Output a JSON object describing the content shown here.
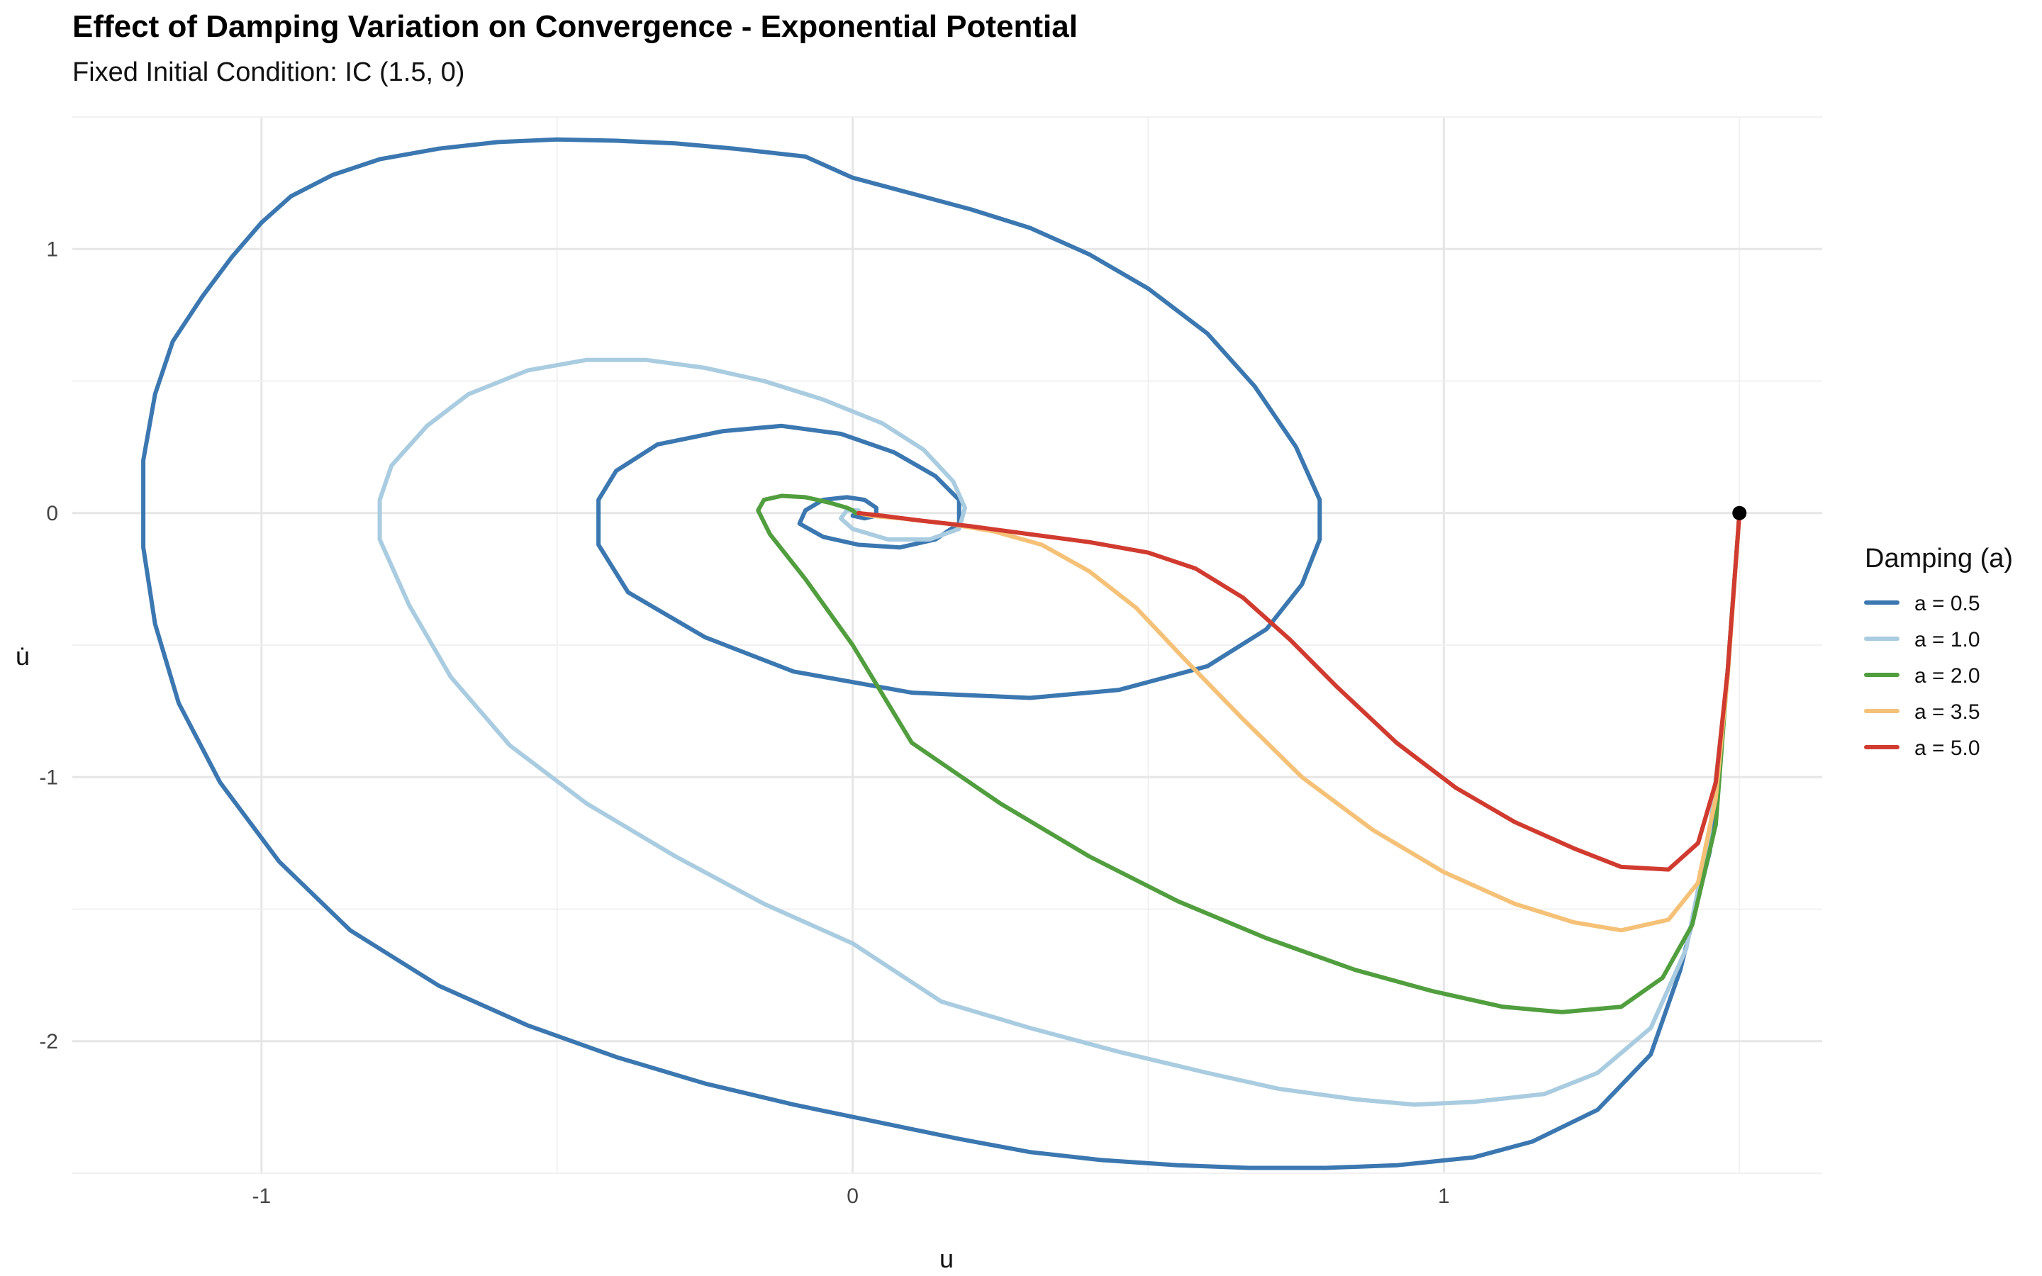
{
  "chart_data": {
    "type": "line",
    "title": "Effect of Damping Variation on Convergence - Exponential Potential",
    "subtitle": "Fixed Initial Condition: IC (1.5, 0)",
    "xlabel": "u",
    "ylabel": "u̇",
    "xlim": [
      -1.32,
      1.64
    ],
    "ylim": [
      -2.5,
      1.5
    ],
    "x_ticks": [
      -1,
      0,
      1
    ],
    "y_ticks": [
      -2,
      -1,
      0,
      1
    ],
    "x_tick_labels": [
      "-1",
      "0",
      "1"
    ],
    "y_tick_labels": [
      "-2",
      "-1",
      "0",
      "1"
    ],
    "grid": true,
    "legend": {
      "title": "Damping (a)",
      "position": "right"
    },
    "initial_point": {
      "x": 1.5,
      "y": 0
    },
    "series": [
      {
        "name": "a = 0.5",
        "color": "#3b77b0",
        "points": [
          [
            1.5,
            0
          ],
          [
            1.48,
            -0.6
          ],
          [
            1.45,
            -1.28
          ],
          [
            1.4,
            -1.73
          ],
          [
            1.35,
            -2.05
          ],
          [
            1.26,
            -2.26
          ],
          [
            1.15,
            -2.38
          ],
          [
            1.05,
            -2.44
          ],
          [
            0.92,
            -2.47
          ],
          [
            0.8,
            -2.48
          ],
          [
            0.67,
            -2.48
          ],
          [
            0.55,
            -2.47
          ],
          [
            0.42,
            -2.45
          ],
          [
            0.3,
            -2.42
          ],
          [
            0.18,
            -2.37
          ],
          [
            0.05,
            -2.31
          ],
          [
            -0.1,
            -2.24
          ],
          [
            -0.25,
            -2.16
          ],
          [
            -0.4,
            -2.06
          ],
          [
            -0.55,
            -1.94
          ],
          [
            -0.7,
            -1.79
          ],
          [
            -0.85,
            -1.58
          ],
          [
            -0.97,
            -1.32
          ],
          [
            -1.07,
            -1.02
          ],
          [
            -1.14,
            -0.72
          ],
          [
            -1.18,
            -0.42
          ],
          [
            -1.2,
            -0.13
          ],
          [
            -1.2,
            0.2
          ],
          [
            -1.18,
            0.45
          ],
          [
            -1.15,
            0.65
          ],
          [
            -1.1,
            0.82
          ],
          [
            -1.05,
            0.97
          ],
          [
            -1.0,
            1.1
          ],
          [
            -0.95,
            1.2
          ],
          [
            -0.88,
            1.28
          ],
          [
            -0.8,
            1.34
          ],
          [
            -0.7,
            1.38
          ],
          [
            -0.6,
            1.405
          ],
          [
            -0.5,
            1.415
          ],
          [
            -0.4,
            1.41
          ],
          [
            -0.3,
            1.4
          ],
          [
            -0.2,
            1.38
          ],
          [
            -0.08,
            1.35
          ],
          [
            0.0,
            1.27
          ],
          [
            0.1,
            1.21
          ],
          [
            0.2,
            1.15
          ],
          [
            0.3,
            1.08
          ],
          [
            0.4,
            0.98
          ],
          [
            0.5,
            0.85
          ],
          [
            0.6,
            0.68
          ],
          [
            0.68,
            0.48
          ],
          [
            0.75,
            0.25
          ],
          [
            0.79,
            0.05
          ],
          [
            0.79,
            -0.1
          ],
          [
            0.76,
            -0.27
          ],
          [
            0.7,
            -0.44
          ],
          [
            0.6,
            -0.58
          ],
          [
            0.45,
            -0.67
          ],
          [
            0.3,
            -0.7
          ],
          [
            0.1,
            -0.68
          ],
          [
            -0.1,
            -0.6
          ],
          [
            -0.25,
            -0.47
          ],
          [
            -0.38,
            -0.3
          ],
          [
            -0.43,
            -0.12
          ],
          [
            -0.43,
            0.05
          ],
          [
            -0.4,
            0.16
          ],
          [
            -0.33,
            0.26
          ],
          [
            -0.22,
            0.31
          ],
          [
            -0.12,
            0.33
          ],
          [
            -0.02,
            0.3
          ],
          [
            0.07,
            0.23
          ],
          [
            0.14,
            0.14
          ],
          [
            0.18,
            0.05
          ],
          [
            0.18,
            -0.04
          ],
          [
            0.14,
            -0.1
          ],
          [
            0.08,
            -0.13
          ],
          [
            0.01,
            -0.12
          ],
          [
            -0.05,
            -0.09
          ],
          [
            -0.09,
            -0.04
          ],
          [
            -0.08,
            0.01
          ],
          [
            -0.05,
            0.05
          ],
          [
            -0.01,
            0.06
          ],
          [
            0.02,
            0.05
          ],
          [
            0.04,
            0.02
          ],
          [
            0.04,
            -0.01
          ],
          [
            0.02,
            -0.02
          ],
          [
            0.0,
            -0.01
          ],
          [
            0.005,
            0.0
          ]
        ]
      },
      {
        "name": "a = 1.0",
        "color": "#a9cce0",
        "points": [
          [
            1.5,
            0
          ],
          [
            1.48,
            -0.62
          ],
          [
            1.45,
            -1.2
          ],
          [
            1.41,
            -1.65
          ],
          [
            1.35,
            -1.95
          ],
          [
            1.26,
            -2.12
          ],
          [
            1.17,
            -2.2
          ],
          [
            1.05,
            -2.23
          ],
          [
            0.95,
            -2.24
          ],
          [
            0.85,
            -2.22
          ],
          [
            0.72,
            -2.18
          ],
          [
            0.6,
            -2.12
          ],
          [
            0.45,
            -2.04
          ],
          [
            0.3,
            -1.95
          ],
          [
            0.15,
            -1.85
          ],
          [
            0.0,
            -1.63
          ],
          [
            -0.15,
            -1.48
          ],
          [
            -0.3,
            -1.3
          ],
          [
            -0.45,
            -1.1
          ],
          [
            -0.58,
            -0.88
          ],
          [
            -0.68,
            -0.62
          ],
          [
            -0.75,
            -0.35
          ],
          [
            -0.8,
            -0.1
          ],
          [
            -0.8,
            0.05
          ],
          [
            -0.78,
            0.18
          ],
          [
            -0.72,
            0.33
          ],
          [
            -0.65,
            0.45
          ],
          [
            -0.55,
            0.54
          ],
          [
            -0.45,
            0.58
          ],
          [
            -0.35,
            0.58
          ],
          [
            -0.25,
            0.55
          ],
          [
            -0.15,
            0.5
          ],
          [
            -0.05,
            0.43
          ],
          [
            0.05,
            0.34
          ],
          [
            0.12,
            0.24
          ],
          [
            0.17,
            0.12
          ],
          [
            0.19,
            0.02
          ],
          [
            0.18,
            -0.06
          ],
          [
            0.13,
            -0.1
          ],
          [
            0.06,
            -0.1
          ],
          [
            0.0,
            -0.06
          ],
          [
            -0.02,
            -0.02
          ],
          [
            -0.01,
            0.01
          ],
          [
            0.01,
            0.01
          ],
          [
            0.01,
            0.0
          ]
        ]
      },
      {
        "name": "a = 2.0",
        "color": "#519e3e",
        "points": [
          [
            1.5,
            0
          ],
          [
            1.48,
            -0.6
          ],
          [
            1.46,
            -1.18
          ],
          [
            1.42,
            -1.56
          ],
          [
            1.37,
            -1.76
          ],
          [
            1.3,
            -1.87
          ],
          [
            1.2,
            -1.89
          ],
          [
            1.1,
            -1.87
          ],
          [
            0.98,
            -1.81
          ],
          [
            0.85,
            -1.73
          ],
          [
            0.7,
            -1.61
          ],
          [
            0.55,
            -1.47
          ],
          [
            0.4,
            -1.3
          ],
          [
            0.25,
            -1.1
          ],
          [
            0.1,
            -0.87
          ],
          [
            0.0,
            -0.5
          ],
          [
            -0.08,
            -0.25
          ],
          [
            -0.14,
            -0.08
          ],
          [
            -0.16,
            0.01
          ],
          [
            -0.15,
            0.05
          ],
          [
            -0.12,
            0.065
          ],
          [
            -0.08,
            0.06
          ],
          [
            -0.04,
            0.04
          ],
          [
            -0.01,
            0.02
          ],
          [
            0.0,
            0.01
          ],
          [
            0.005,
            0.0
          ]
        ]
      },
      {
        "name": "a = 3.5",
        "color": "#f5c177",
        "points": [
          [
            1.5,
            0
          ],
          [
            1.48,
            -0.62
          ],
          [
            1.46,
            -1.08
          ],
          [
            1.43,
            -1.4
          ],
          [
            1.38,
            -1.54
          ],
          [
            1.3,
            -1.58
          ],
          [
            1.22,
            -1.55
          ],
          [
            1.12,
            -1.48
          ],
          [
            1.0,
            -1.36
          ],
          [
            0.88,
            -1.2
          ],
          [
            0.76,
            -1.0
          ],
          [
            0.66,
            -0.78
          ],
          [
            0.56,
            -0.55
          ],
          [
            0.48,
            -0.36
          ],
          [
            0.4,
            -0.22
          ],
          [
            0.32,
            -0.12
          ],
          [
            0.24,
            -0.07
          ],
          [
            0.16,
            -0.04
          ],
          [
            0.08,
            -0.02
          ],
          [
            0.03,
            -0.01
          ],
          [
            0.01,
            0.0
          ]
        ]
      },
      {
        "name": "a = 5.0",
        "color": "#d13b2f",
        "points": [
          [
            1.5,
            0
          ],
          [
            1.48,
            -0.6
          ],
          [
            1.46,
            -1.02
          ],
          [
            1.43,
            -1.25
          ],
          [
            1.38,
            -1.35
          ],
          [
            1.3,
            -1.34
          ],
          [
            1.22,
            -1.27
          ],
          [
            1.12,
            -1.17
          ],
          [
            1.02,
            -1.04
          ],
          [
            0.92,
            -0.87
          ],
          [
            0.82,
            -0.66
          ],
          [
            0.74,
            -0.48
          ],
          [
            0.66,
            -0.32
          ],
          [
            0.58,
            -0.21
          ],
          [
            0.5,
            -0.15
          ],
          [
            0.4,
            -0.11
          ],
          [
            0.3,
            -0.08
          ],
          [
            0.2,
            -0.05
          ],
          [
            0.12,
            -0.03
          ],
          [
            0.05,
            -0.01
          ],
          [
            0.01,
            0.0
          ]
        ]
      }
    ]
  }
}
